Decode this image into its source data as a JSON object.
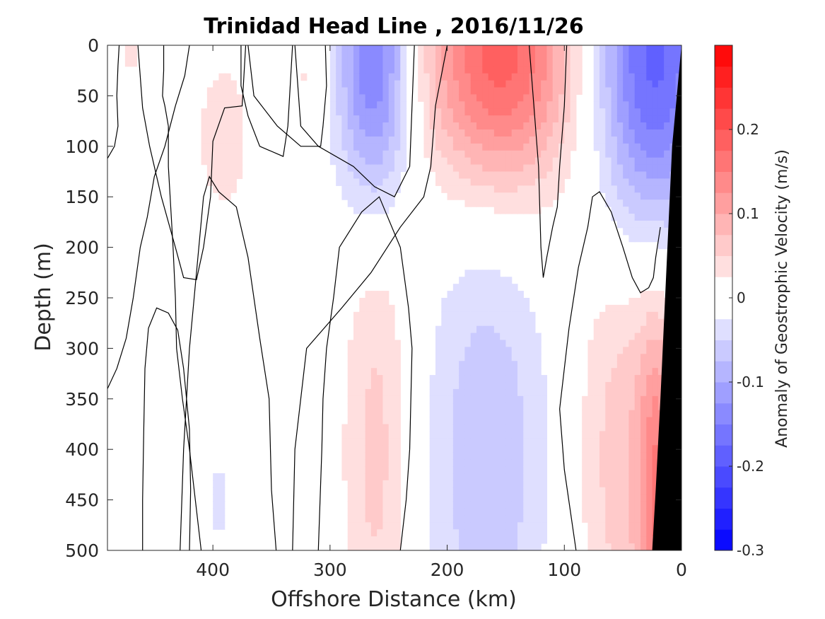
{
  "chart_data": {
    "type": "heatmap",
    "title": "Trinidad Head Line , 2016/11/26",
    "xlabel": "Offshore Distance (km)",
    "ylabel": "Depth (m)",
    "xlim": [
      490,
      0
    ],
    "ylim": [
      0,
      500
    ],
    "x_reversed": true,
    "y_reversed": true,
    "xticks": [
      400,
      300,
      200,
      100,
      0
    ],
    "yticks": [
      0,
      50,
      100,
      150,
      200,
      250,
      300,
      350,
      400,
      450,
      500
    ],
    "colorbar": {
      "label": "Anomaly of Geostrophic Velocity (m/s)",
      "range": [
        -0.3,
        0.3
      ],
      "step": 0.025,
      "ticks": [
        -0.3,
        -0.2,
        -0.1,
        0,
        0.1,
        0.2
      ],
      "tick_labels": [
        "-0.3",
        "-0.2",
        "-0.1",
        "0",
        "0.1",
        "0.2"
      ],
      "zero_band": [
        -0.025,
        0.025
      ]
    },
    "contour_levels": [
      0
    ],
    "features": [
      {
        "x_center": 470,
        "depth_center": 10,
        "x_width": 14,
        "depth_width": 30,
        "value": 0.03
      },
      {
        "x_center": 390,
        "depth_center": 90,
        "x_width": 28,
        "depth_width": 90,
        "value": 0.04
      },
      {
        "x_center": 355,
        "depth_center": 50,
        "x_width": 14,
        "depth_width": 80,
        "value": -0.03
      },
      {
        "x_center": 320,
        "depth_center": 30,
        "x_width": 18,
        "depth_width": 50,
        "value": 0.03
      },
      {
        "x_center": 262,
        "depth_center": 20,
        "x_width": 32,
        "depth_width": 140,
        "value": -0.16
      },
      {
        "x_center": 155,
        "depth_center": 15,
        "x_width": 65,
        "depth_width": 130,
        "value": 0.19
      },
      {
        "x_center": 25,
        "depth_center": 15,
        "x_width": 50,
        "depth_width": 180,
        "value": -0.19
      },
      {
        "x_center": 395,
        "depth_center": 450,
        "x_width": 10,
        "depth_width": 80,
        "value": -0.03
      },
      {
        "x_center": 260,
        "depth_center": 400,
        "x_width": 30,
        "depth_width": 250,
        "value": 0.06
      },
      {
        "x_center": 165,
        "depth_center": 410,
        "x_width": 55,
        "depth_width": 250,
        "value": -0.07
      },
      {
        "x_center": 45,
        "depth_center": 400,
        "x_width": 45,
        "depth_width": 250,
        "value": 0.07
      },
      {
        "x_center": 20,
        "depth_center": 450,
        "x_width": 16,
        "depth_width": 180,
        "value": 0.11
      }
    ],
    "bathymetry": [
      [
        25,
        500
      ],
      [
        22,
        440
      ],
      [
        18,
        350
      ],
      [
        12,
        200
      ],
      [
        8,
        100
      ],
      [
        0,
        0
      ]
    ],
    "zero_contours": [
      [
        [
          490,
          112
        ],
        [
          484,
          100
        ],
        [
          481,
          80
        ],
        [
          482,
          50
        ],
        [
          481,
          20
        ],
        [
          480,
          0
        ]
      ],
      [
        [
          442,
          0
        ],
        [
          442,
          25
        ],
        [
          443,
          50
        ],
        [
          441,
          60
        ],
        [
          438,
          80
        ],
        [
          438,
          120
        ],
        [
          436,
          160
        ],
        [
          434,
          200
        ],
        [
          432,
          250
        ],
        [
          431,
          300
        ],
        [
          426,
          350
        ],
        [
          420,
          400
        ],
        [
          415,
          450
        ],
        [
          410,
          500
        ]
      ],
      [
        [
          490,
          340
        ],
        [
          482,
          320
        ],
        [
          474,
          290
        ],
        [
          468,
          250
        ],
        [
          462,
          200
        ],
        [
          456,
          170
        ],
        [
          450,
          130
        ],
        [
          441,
          100
        ],
        [
          432,
          60
        ],
        [
          424,
          30
        ],
        [
          420,
          0
        ]
      ],
      [
        [
          332,
          0
        ],
        [
          334,
          40
        ],
        [
          336,
          80
        ],
        [
          340,
          110
        ],
        [
          352,
          104
        ],
        [
          360,
          100
        ],
        [
          370,
          70
        ],
        [
          376,
          40
        ],
        [
          376,
          0
        ]
      ],
      [
        [
          372,
          0
        ],
        [
          375,
          60
        ],
        [
          390,
          62
        ],
        [
          400,
          95
        ],
        [
          402,
          150
        ],
        [
          408,
          200
        ],
        [
          414,
          232
        ],
        [
          425,
          230
        ],
        [
          432,
          200
        ],
        [
          444,
          150
        ],
        [
          454,
          100
        ],
        [
          460,
          62
        ],
        [
          464,
          0
        ]
      ],
      [
        [
          420,
          500
        ],
        [
          419,
          440
        ],
        [
          420,
          380
        ],
        [
          425,
          320
        ],
        [
          430,
          282
        ],
        [
          438,
          265
        ],
        [
          448,
          260
        ],
        [
          455,
          280
        ],
        [
          458,
          320
        ],
        [
          459,
          380
        ],
        [
          460,
          450
        ],
        [
          460,
          500
        ]
      ],
      [
        [
          304,
          0
        ],
        [
          303,
          40
        ],
        [
          306,
          80
        ],
        [
          308,
          100
        ],
        [
          325,
          100
        ],
        [
          345,
          80
        ],
        [
          365,
          50
        ],
        [
          370,
          0
        ]
      ],
      [
        [
          346,
          500
        ],
        [
          350,
          440
        ],
        [
          352,
          350
        ],
        [
          360,
          290
        ],
        [
          370,
          210
        ],
        [
          380,
          160
        ],
        [
          395,
          145
        ],
        [
          403,
          130
        ],
        [
          408,
          150
        ],
        [
          412,
          200
        ],
        [
          420,
          300
        ],
        [
          425,
          400
        ],
        [
          428,
          500
        ]
      ],
      [
        [
          228,
          0
        ],
        [
          230,
          60
        ],
        [
          232,
          120
        ],
        [
          245,
          150
        ],
        [
          262,
          140
        ],
        [
          280,
          120
        ],
        [
          310,
          100
        ],
        [
          325,
          80
        ],
        [
          330,
          0
        ]
      ],
      [
        [
          200,
          0
        ],
        [
          210,
          60
        ],
        [
          214,
          120
        ],
        [
          220,
          150
        ],
        [
          240,
          180
        ],
        [
          265,
          225
        ],
        [
          290,
          260
        ],
        [
          320,
          300
        ],
        [
          330,
          400
        ],
        [
          332,
          500
        ]
      ],
      [
        [
          130,
          0
        ],
        [
          126,
          60
        ],
        [
          122,
          120
        ],
        [
          120,
          200
        ],
        [
          118,
          230
        ],
        [
          115,
          210
        ],
        [
          110,
          180
        ],
        [
          106,
          160
        ],
        [
          104,
          120
        ],
        [
          100,
          60
        ],
        [
          98,
          0
        ]
      ],
      [
        [
          240,
          500
        ],
        [
          235,
          450
        ],
        [
          232,
          400
        ],
        [
          230,
          300
        ],
        [
          233,
          260
        ],
        [
          240,
          200
        ],
        [
          258,
          150
        ],
        [
          273,
          165
        ],
        [
          292,
          200
        ],
        [
          297,
          250
        ],
        [
          303,
          300
        ],
        [
          306,
          350
        ],
        [
          307,
          400
        ],
        [
          310,
          500
        ]
      ],
      [
        [
          90,
          500
        ],
        [
          95,
          460
        ],
        [
          100,
          420
        ],
        [
          104,
          360
        ],
        [
          100,
          320
        ],
        [
          96,
          280
        ],
        [
          92,
          250
        ],
        [
          88,
          220
        ],
        [
          84,
          200
        ],
        [
          80,
          180
        ],
        [
          76,
          150
        ],
        [
          70,
          145
        ],
        [
          60,
          165
        ],
        [
          50,
          200
        ],
        [
          42,
          230
        ],
        [
          35,
          245
        ],
        [
          28,
          240
        ],
        [
          24,
          230
        ],
        [
          22,
          210
        ],
        [
          18,
          180
        ]
      ]
    ]
  }
}
